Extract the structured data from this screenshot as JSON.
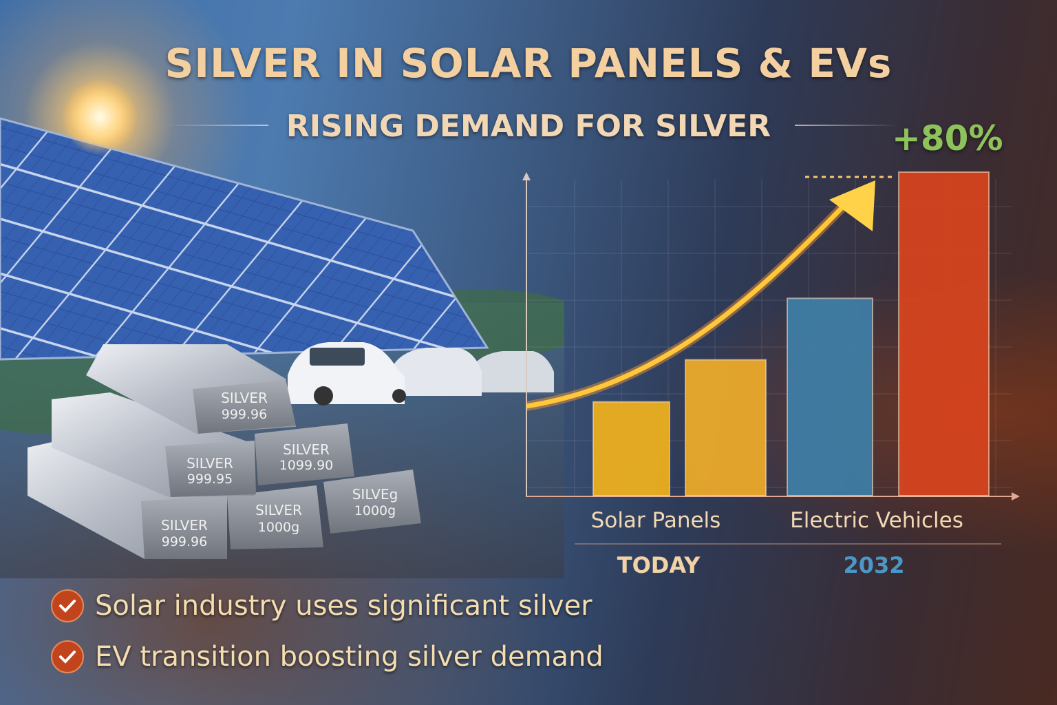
{
  "header": {
    "title": "SILVER IN SOLAR PANELS & EVs",
    "subtitle": "RISING DEMAND FOR SILVER"
  },
  "illustration": {
    "icons": [
      "sun-icon",
      "solar-panel-icon",
      "car-icon",
      "silver-bar-icon"
    ],
    "silver_bars": [
      {
        "line1": "SILVER",
        "line2": "999.96"
      },
      {
        "line1": "SILVER",
        "line2": "999.95"
      },
      {
        "line1": "SILVER",
        "line2": "1099.90"
      },
      {
        "line1": "SILVER",
        "line2": "999.96"
      },
      {
        "line1": "SILVER",
        "line2": "1000g"
      },
      {
        "line1": "SILVEg",
        "line2": "1000g"
      }
    ]
  },
  "chart": {
    "type": "bar",
    "growth_label": "+80%",
    "groups": [
      {
        "label": "Solar Panels",
        "period": "TODAY",
        "period_color": "#f2d3a5"
      },
      {
        "label": "Electric Vehicles",
        "period": "2032",
        "period_color": "#4b97c6"
      }
    ],
    "bars_relative_level": [
      0.29,
      0.42,
      0.61,
      1.0
    ],
    "bar_colors": [
      "#f2b21e",
      "#f0ad2a",
      "#3f7fa8",
      "#d9441e"
    ],
    "trend_arrow_color": "#ffc83a",
    "growth_color": "#8ec25a"
  },
  "bullets": [
    {
      "icon": "check-icon",
      "text": "Solar industry uses significant silver"
    },
    {
      "icon": "check-icon",
      "text": "EV transition boosting silver demand"
    }
  ]
}
